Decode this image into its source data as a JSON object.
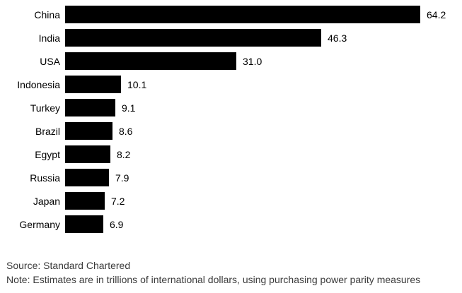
{
  "chart_data": {
    "type": "bar",
    "orientation": "horizontal",
    "title": "",
    "xlabel": "",
    "ylabel": "",
    "categories": [
      "China",
      "India",
      "USA",
      "Indonesia",
      "Turkey",
      "Brazil",
      "Egypt",
      "Russia",
      "Japan",
      "Germany"
    ],
    "values": [
      64.2,
      46.3,
      31.0,
      10.1,
      9.1,
      8.6,
      8.2,
      7.9,
      7.2,
      6.9
    ],
    "value_labels": [
      "64.2",
      "46.3",
      "31.0",
      "10.1",
      "9.1",
      "8.6",
      "8.2",
      "7.9",
      "7.2",
      "6.9"
    ],
    "xlim": [
      0,
      64.2
    ],
    "grid": false,
    "legend": false,
    "bar_color": "#000000",
    "text_color": "#000000"
  },
  "footer": {
    "source": "Source: Standard Chartered",
    "note": "Note: Estimates are in trillions of international dollars, using purchasing power parity measures"
  }
}
